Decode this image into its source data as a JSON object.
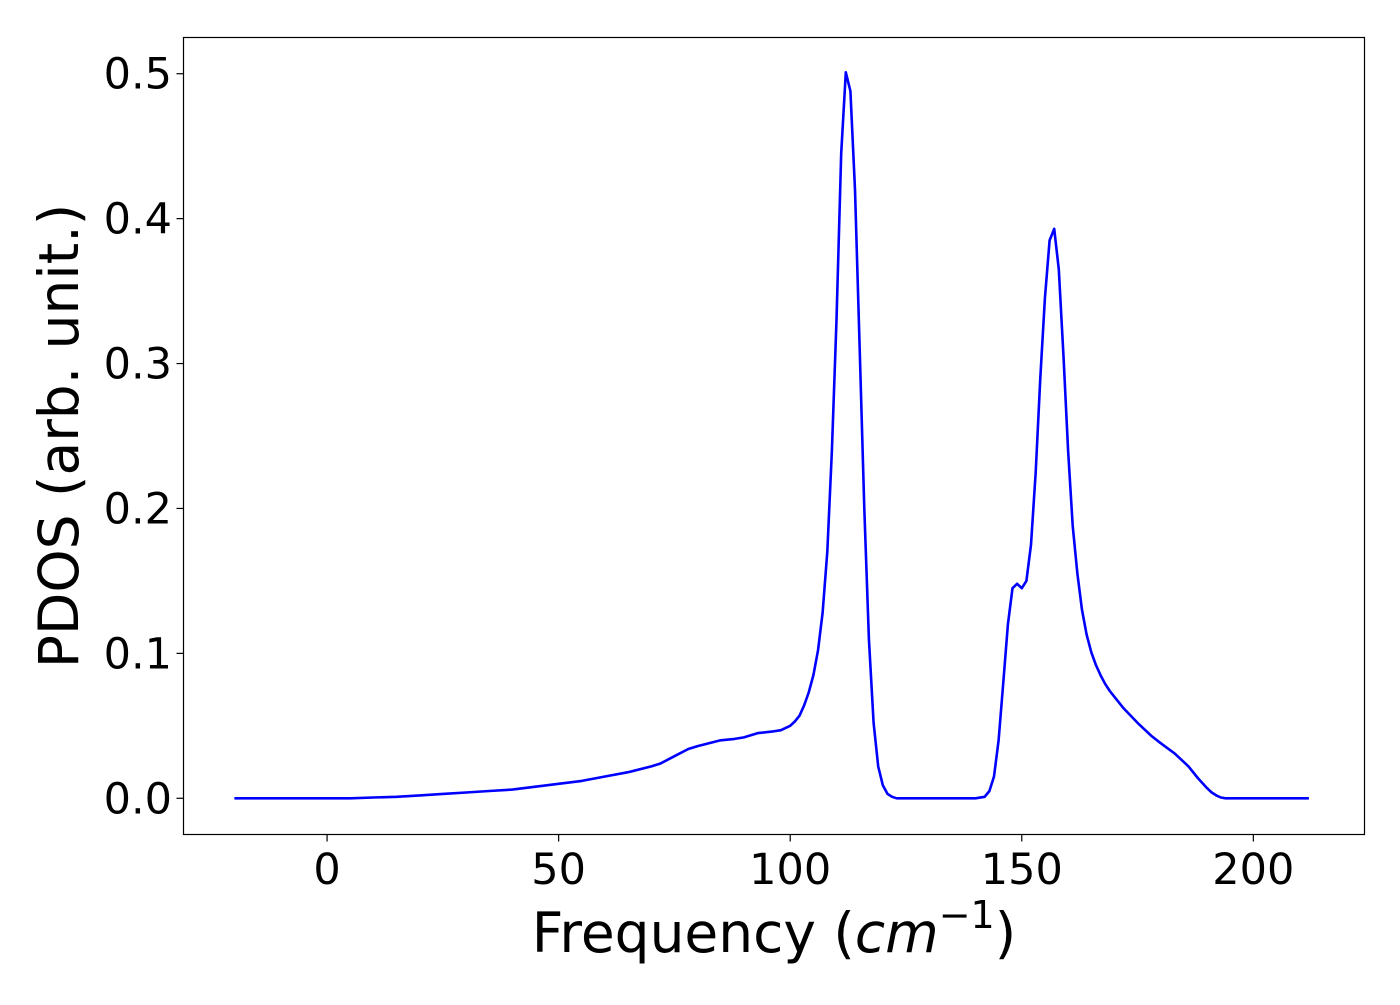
{
  "chart_data": {
    "type": "line",
    "title": "",
    "xlabel": "Frequency",
    "xlabel_unit_base": "cm",
    "xlabel_unit_exp": "−1",
    "ylabel": "PDOS (arb. unit.)",
    "xlim": [
      -31,
      224
    ],
    "ylim": [
      -0.025,
      0.525
    ],
    "x_ticks": [
      0,
      50,
      100,
      150,
      200
    ],
    "y_ticks": [
      0.0,
      0.1,
      0.2,
      0.3,
      0.4,
      0.5
    ],
    "x_tick_labels": [
      "0",
      "50",
      "100",
      "150",
      "200"
    ],
    "y_tick_labels": [
      "0.0",
      "0.1",
      "0.2",
      "0.3",
      "0.4",
      "0.5"
    ],
    "grid": false,
    "line_color": "#0000ff",
    "series": [
      {
        "x": [
          -20,
          0,
          5,
          10,
          15,
          20,
          25,
          30,
          35,
          40,
          45,
          50,
          55,
          60,
          65,
          70,
          72,
          75,
          78,
          80,
          85,
          88,
          90,
          93,
          96,
          98,
          100,
          101,
          102,
          103,
          104,
          105,
          106,
          107,
          108,
          109,
          110,
          111,
          112,
          113,
          114,
          115,
          116,
          117,
          118,
          119,
          120,
          121,
          122,
          123,
          124,
          126,
          130,
          135,
          140,
          142,
          143,
          144,
          145,
          146,
          147,
          148,
          149,
          150,
          151,
          152,
          153,
          154,
          155,
          156,
          157,
          158,
          159,
          160,
          161,
          162,
          163,
          164,
          165,
          166,
          167,
          168,
          169,
          170,
          172,
          175,
          178,
          180,
          183,
          186,
          188,
          190,
          191,
          192,
          193,
          194,
          195,
          196,
          198,
          200,
          205,
          212
        ],
        "y": [
          0.0,
          0.0,
          0.0,
          0.0005,
          0.001,
          0.002,
          0.003,
          0.004,
          0.005,
          0.006,
          0.008,
          0.01,
          0.012,
          0.015,
          0.018,
          0.022,
          0.024,
          0.029,
          0.034,
          0.036,
          0.04,
          0.041,
          0.042,
          0.045,
          0.046,
          0.047,
          0.05,
          0.053,
          0.057,
          0.064,
          0.073,
          0.085,
          0.102,
          0.128,
          0.17,
          0.24,
          0.33,
          0.445,
          0.501,
          0.488,
          0.42,
          0.31,
          0.2,
          0.11,
          0.052,
          0.022,
          0.009,
          0.003,
          0.001,
          0.0,
          0.0,
          0.0,
          0.0,
          0.0,
          0.0,
          0.001,
          0.005,
          0.015,
          0.04,
          0.08,
          0.12,
          0.145,
          0.148,
          0.145,
          0.15,
          0.175,
          0.225,
          0.29,
          0.345,
          0.385,
          0.393,
          0.365,
          0.305,
          0.24,
          0.188,
          0.155,
          0.13,
          0.113,
          0.101,
          0.092,
          0.085,
          0.079,
          0.074,
          0.07,
          0.062,
          0.052,
          0.043,
          0.038,
          0.031,
          0.022,
          0.014,
          0.007,
          0.004,
          0.002,
          0.0005,
          0.0,
          0.0,
          0.0,
          0.0,
          0.0,
          0.0,
          0.0
        ]
      }
    ]
  }
}
